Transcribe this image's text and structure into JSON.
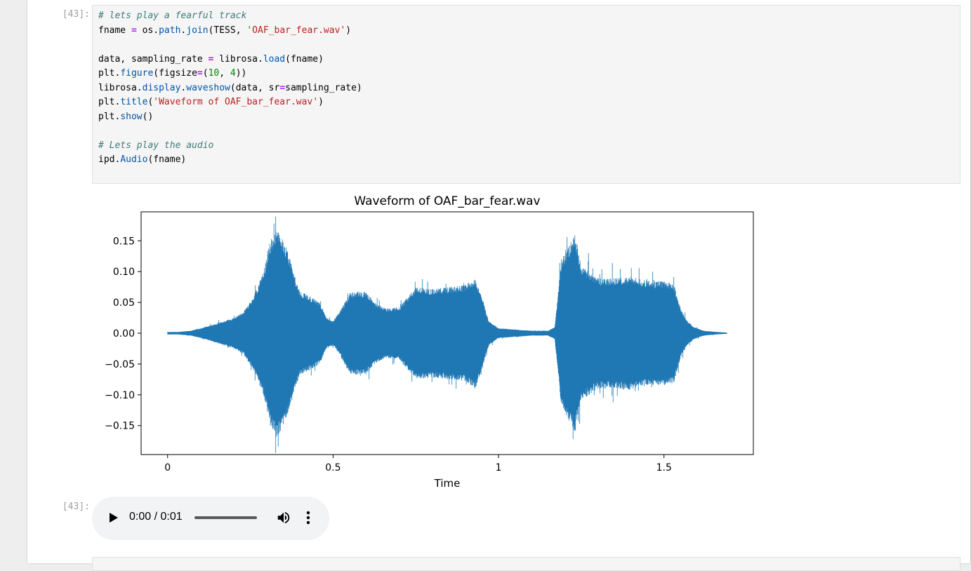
{
  "cells": [
    {
      "prompt": "[43]:",
      "code_lines": [
        [
          {
            "t": "# lets play a fearful track",
            "c": "cm"
          }
        ],
        [
          {
            "t": "fname "
          },
          {
            "t": "=",
            "c": "op"
          },
          {
            "t": " os"
          },
          {
            "t": "."
          },
          {
            "t": "path",
            "c": "fn"
          },
          {
            "t": "."
          },
          {
            "t": "join",
            "c": "fn"
          },
          {
            "t": "(TESS, "
          },
          {
            "t": "'OAF_bar_fear.wav'",
            "c": "st"
          },
          {
            "t": ")"
          }
        ],
        [],
        [
          {
            "t": "data, sampling_rate "
          },
          {
            "t": "=",
            "c": "op"
          },
          {
            "t": " librosa"
          },
          {
            "t": "."
          },
          {
            "t": "load",
            "c": "fn"
          },
          {
            "t": "(fname)"
          }
        ],
        [
          {
            "t": "plt"
          },
          {
            "t": "."
          },
          {
            "t": "figure",
            "c": "fn"
          },
          {
            "t": "(figsize"
          },
          {
            "t": "=",
            "c": "op"
          },
          {
            "t": "("
          },
          {
            "t": "10",
            "c": "nm"
          },
          {
            "t": ", "
          },
          {
            "t": "4",
            "c": "nm"
          },
          {
            "t": "))"
          }
        ],
        [
          {
            "t": "librosa"
          },
          {
            "t": "."
          },
          {
            "t": "display",
            "c": "fn"
          },
          {
            "t": "."
          },
          {
            "t": "waveshow",
            "c": "fn"
          },
          {
            "t": "(data, sr"
          },
          {
            "t": "=",
            "c": "op"
          },
          {
            "t": "sampling_rate)"
          }
        ],
        [
          {
            "t": "plt"
          },
          {
            "t": "."
          },
          {
            "t": "title",
            "c": "fn"
          },
          {
            "t": "("
          },
          {
            "t": "'Waveform of OAF_bar_fear.wav'",
            "c": "st"
          },
          {
            "t": ")"
          }
        ],
        [
          {
            "t": "plt"
          },
          {
            "t": "."
          },
          {
            "t": "show",
            "c": "fn"
          },
          {
            "t": "()"
          }
        ],
        [],
        [
          {
            "t": "# Lets play the audio",
            "c": "cm"
          }
        ],
        [
          {
            "t": "ipd"
          },
          {
            "t": "."
          },
          {
            "t": "Audio",
            "c": "fn"
          },
          {
            "t": "(fname)"
          }
        ]
      ]
    }
  ],
  "output": {
    "prompt": "[43]:"
  },
  "audio_player": {
    "time_text": "0:00 / 0:01",
    "progress": 0.0,
    "play_icon": "play-icon",
    "volume_icon": "volume-icon",
    "menu_icon": "more-vert-icon"
  },
  "chart_data": {
    "type": "area",
    "title": "Waveform of OAF_bar_fear.wav",
    "xlabel": "Time",
    "ylabel": "",
    "xlim": [
      -0.08,
      1.77
    ],
    "ylim": [
      -0.197,
      0.197
    ],
    "x_ticks": [
      {
        "value": 0,
        "label": "0"
      },
      {
        "value": 0.5,
        "label": "0.5"
      },
      {
        "value": 1,
        "label": "1"
      },
      {
        "value": 1.5,
        "label": "1.5"
      }
    ],
    "y_ticks": [
      {
        "value": 0.15,
        "label": "0.15"
      },
      {
        "value": 0.1,
        "label": "0.10"
      },
      {
        "value": 0.05,
        "label": "0.05"
      },
      {
        "value": 0.0,
        "label": "0.00"
      },
      {
        "value": -0.05,
        "label": "−0.05"
      },
      {
        "value": -0.1,
        "label": "−0.10"
      },
      {
        "value": -0.15,
        "label": "−0.15"
      }
    ],
    "color": "#1f77b4",
    "envelope": {
      "time": [
        0,
        0.03,
        0.07,
        0.1,
        0.15,
        0.2,
        0.23,
        0.26,
        0.29,
        0.31,
        0.33,
        0.36,
        0.38,
        0.4,
        0.43,
        0.46,
        0.48,
        0.5,
        0.52,
        0.55,
        0.57,
        0.6,
        0.63,
        0.66,
        0.7,
        0.75,
        0.8,
        0.85,
        0.9,
        0.93,
        0.95,
        0.97,
        1,
        1.05,
        1.1,
        1.15,
        1.17,
        1.19,
        1.21,
        1.23,
        1.25,
        1.3,
        1.35,
        1.4,
        1.45,
        1.5,
        1.53,
        1.55,
        1.57,
        1.59,
        1.62,
        1.66,
        1.69
      ],
      "amplitude": [
        0.002,
        0.002,
        0.004,
        0.008,
        0.016,
        0.025,
        0.035,
        0.06,
        0.1,
        0.15,
        0.17,
        0.14,
        0.1,
        0.068,
        0.06,
        0.05,
        0.025,
        0.02,
        0.035,
        0.065,
        0.068,
        0.067,
        0.048,
        0.04,
        0.042,
        0.075,
        0.072,
        0.075,
        0.078,
        0.09,
        0.06,
        0.02,
        0.008,
        0.006,
        0.004,
        0.004,
        0.01,
        0.12,
        0.14,
        0.16,
        0.11,
        0.09,
        0.09,
        0.092,
        0.085,
        0.085,
        0.08,
        0.04,
        0.02,
        0.01,
        0.004,
        0.002,
        0.001
      ]
    }
  }
}
